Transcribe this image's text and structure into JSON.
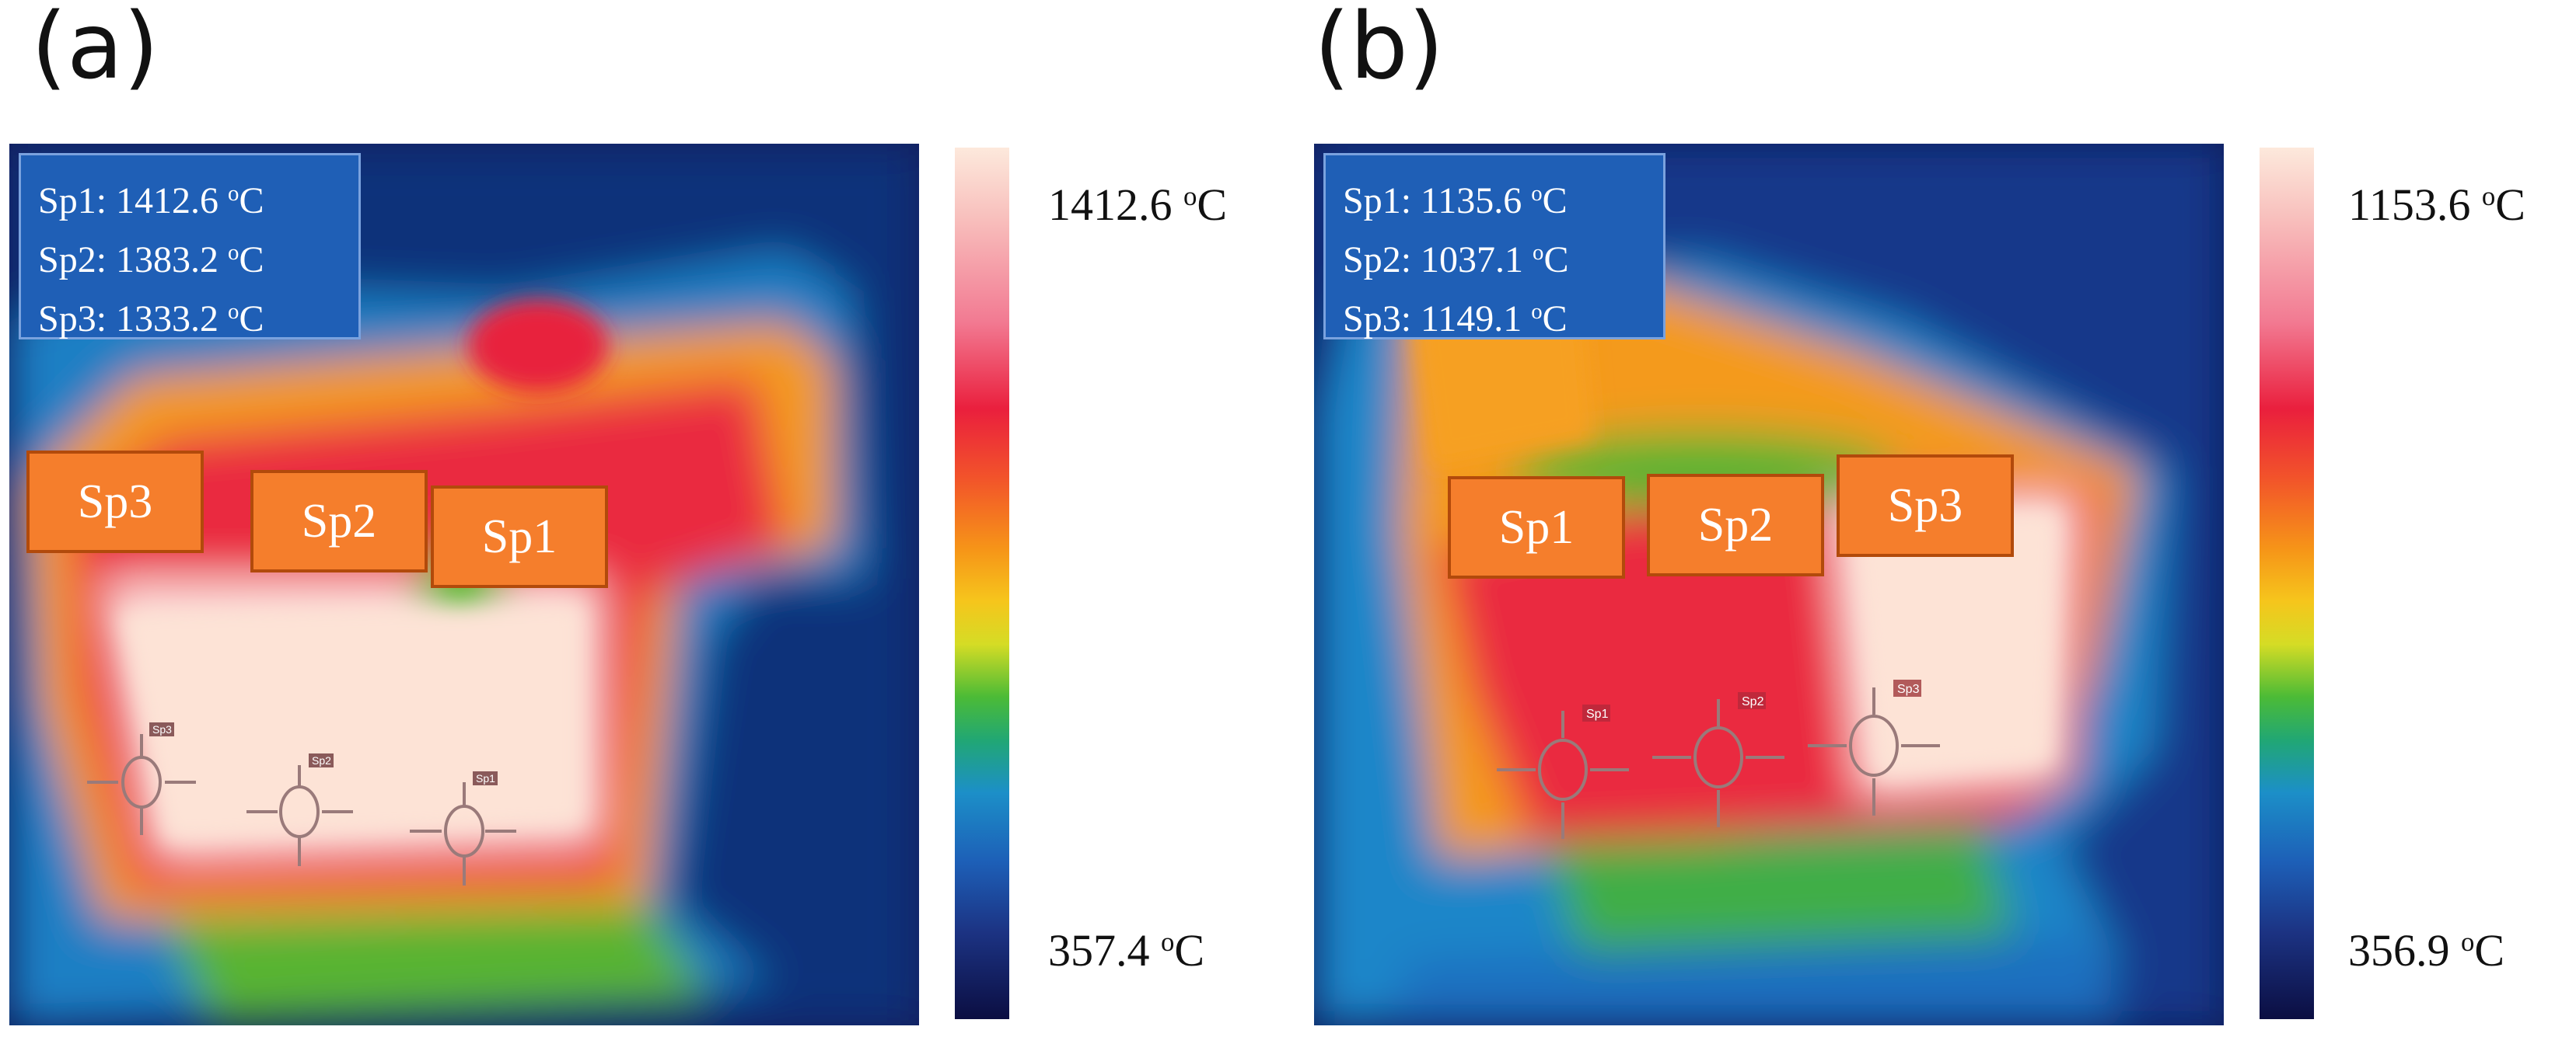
{
  "panels": [
    {
      "letter": "(a)",
      "readout": [
        "Sp1: 1412.6 ",
        "Sp2: 1383.2 ",
        "Sp3: 1333.2 "
      ],
      "unit_sup": "o",
      "unit": "C",
      "tags": [
        "Sp3",
        "Sp2",
        "Sp1"
      ],
      "marker_labels": [
        "Sp3",
        "Sp2",
        "Sp1"
      ],
      "scale_max": "1412.6 ",
      "scale_min": "357.4 "
    },
    {
      "letter": "(b)",
      "readout": [
        "Sp1: 1135.6 ",
        "Sp2: 1037.1 ",
        "Sp3: 1149.1 "
      ],
      "unit_sup": "o",
      "unit": "C",
      "tags": [
        "Sp1",
        "Sp2",
        "Sp3"
      ],
      "marker_labels": [
        "Sp1",
        "Sp2",
        "Sp3"
      ],
      "scale_max": "1153.6 ",
      "scale_min": "356.9 "
    }
  ],
  "colors": {
    "readout_bg": "#1f5fb6",
    "tag_bg": "#f57e2c",
    "tag_border": "#b24a0b"
  }
}
